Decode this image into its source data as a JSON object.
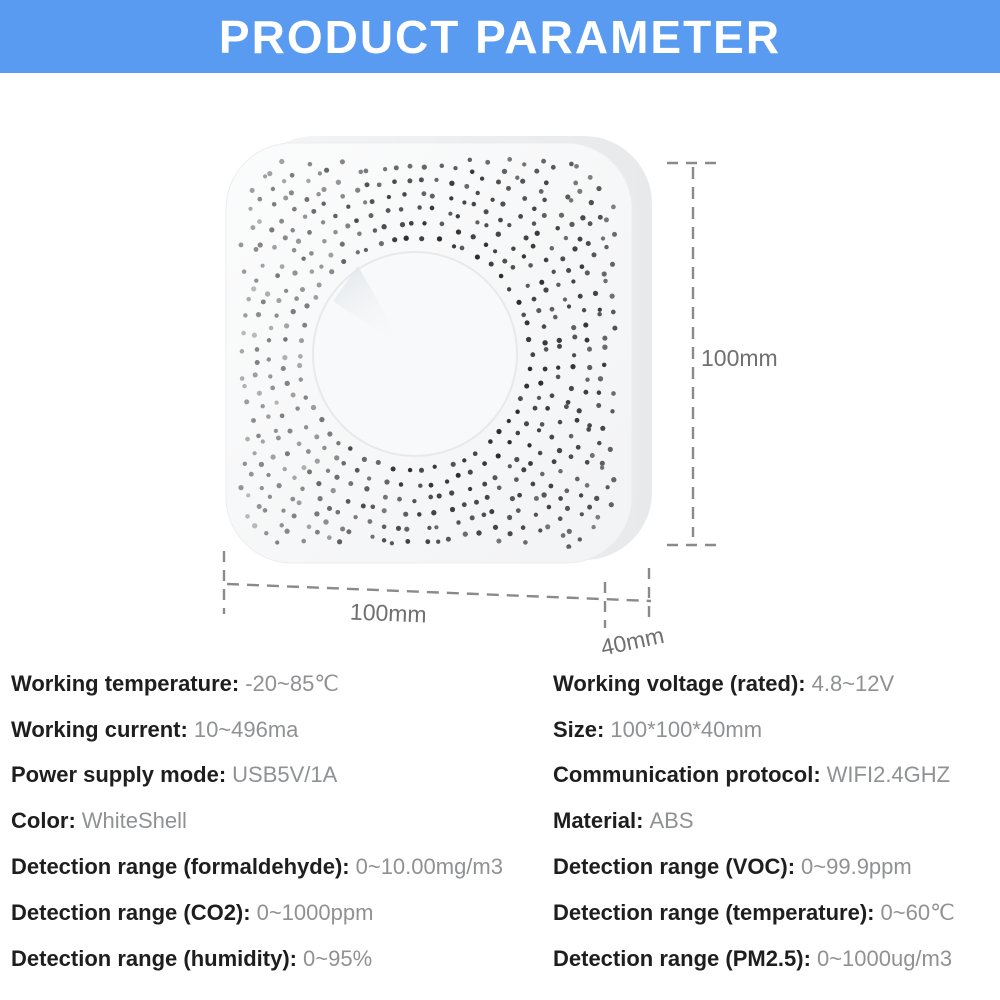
{
  "header": {
    "title": "PRODUCT PARAMETER"
  },
  "colors": {
    "banner_bg": "#5A9BF2",
    "banner_text": "#FFFFFF",
    "label_text": "#1E1E1E",
    "value_text": "#8F9193",
    "dimension_line": "#8A8A8A",
    "dimension_text": "#6F6F6F"
  },
  "diagram": {
    "device": "white square air-quality sensor with radial vent holes",
    "height_dimension": "100mm",
    "width_dimension": "100mm",
    "depth_dimension": "40mm"
  },
  "specs": {
    "left": [
      {
        "label": "Working temperature:",
        "value": "-20~85℃"
      },
      {
        "label": "Working current:",
        "value": "10~496ma"
      },
      {
        "label": "Power supply mode:",
        "value": "USB5V/1A"
      },
      {
        "label": "Color:",
        "value": "WhiteShell"
      },
      {
        "label": "Detection range (formaldehyde):",
        "value": "0~10.00mg/m3"
      },
      {
        "label": "Detection range (CO2):",
        "value": "0~1000ppm"
      },
      {
        "label": "Detection range (humidity):",
        "value": "0~95%"
      }
    ],
    "right": [
      {
        "label": "Working voltage (rated):",
        "value": "4.8~12V"
      },
      {
        "label": "Size:",
        "value": "100*100*40mm"
      },
      {
        "label": "Communication protocol:",
        "value": "WIFI2.4GHZ"
      },
      {
        "label": "Material:",
        "value": "ABS"
      },
      {
        "label": "Detection range (VOC):",
        "value": "0~99.9ppm"
      },
      {
        "label": "Detection range (temperature):",
        "value": "0~60℃"
      },
      {
        "label": "Detection range (PM2.5):",
        "value": "0~1000ug/m3"
      }
    ]
  }
}
